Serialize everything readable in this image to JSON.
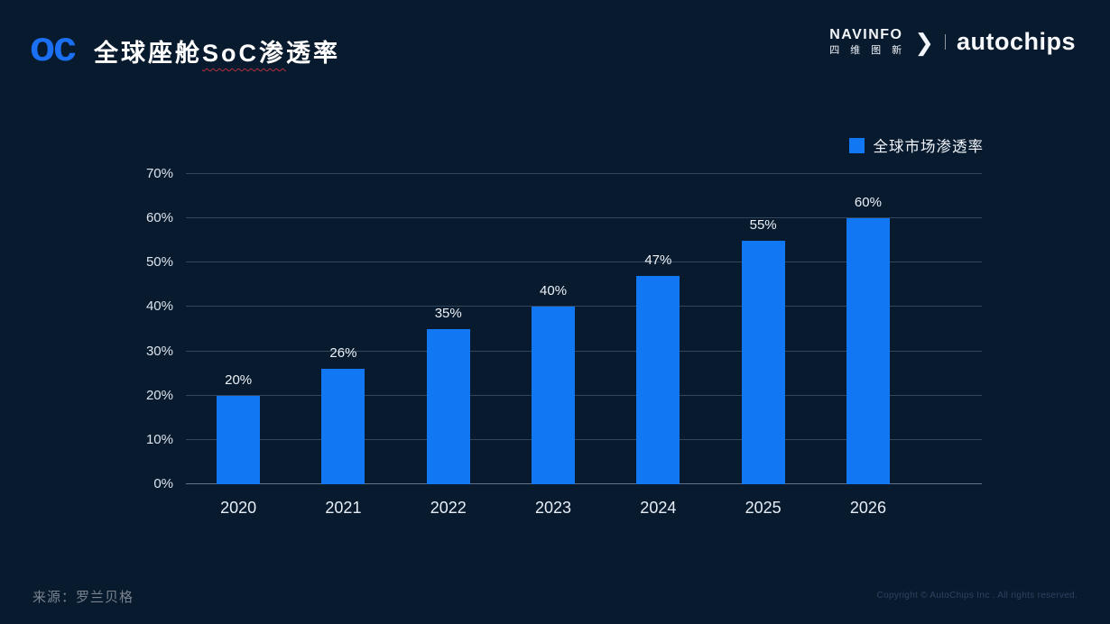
{
  "header": {
    "logo_text": "oc",
    "title": "全球座舱SoC渗透率",
    "title_part1": "全球座舱",
    "title_part2": "SoC渗",
    "title_part3": "透率"
  },
  "brand": {
    "navinfo_en": "NAVINFO",
    "navinfo_cn": "四维图新",
    "chevron": "❯",
    "autochips": "autochips"
  },
  "legend": {
    "label": "全球市场渗透率",
    "color": "#1277f2"
  },
  "chart_data": {
    "type": "bar",
    "title": "全球座舱SoC渗透率",
    "categories": [
      "2020",
      "2021",
      "2022",
      "2023",
      "2024",
      "2025",
      "2026"
    ],
    "values": [
      20,
      26,
      35,
      40,
      47,
      55,
      60
    ],
    "value_labels": [
      "20%",
      "26%",
      "35%",
      "40%",
      "47%",
      "55%",
      "60%"
    ],
    "xlabel": "",
    "ylabel": "",
    "ylim": [
      0,
      70
    ],
    "yticks": [
      "0%",
      "10%",
      "20%",
      "30%",
      "40%",
      "50%",
      "60%",
      "70%"
    ],
    "grid": "horizontal",
    "legend": [
      "全球市场渗透率"
    ],
    "legend_position": "top-right",
    "bar_color": "#1277f2",
    "background_color": "#081a2e"
  },
  "footer": {
    "source": "来源：罗兰贝格",
    "copyright": "Copyright © AutoChips Inc . All rights reserved."
  }
}
